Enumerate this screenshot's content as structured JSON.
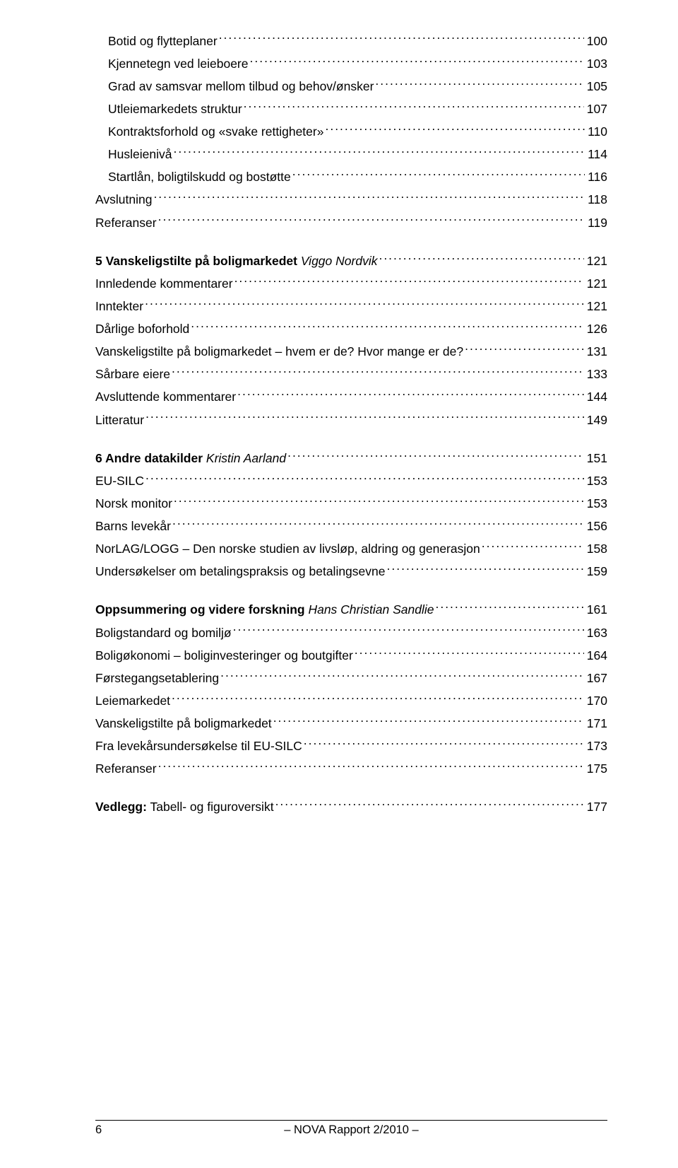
{
  "footer": {
    "page_number": "6",
    "center": "– NOVA Rapport 2/2010 –"
  },
  "toc": {
    "groups": [
      {
        "items": [
          {
            "label": "Botid og flytteplaner",
            "page": "100",
            "bold": false,
            "italic": false,
            "indent": true
          },
          {
            "label": "Kjennetegn ved leieboere",
            "page": "103",
            "bold": false,
            "italic": false,
            "indent": true
          },
          {
            "label": "Grad av samsvar mellom tilbud og behov/ønsker",
            "page": "105",
            "bold": false,
            "italic": false,
            "indent": true
          },
          {
            "label": "Utleiemarkedets struktur",
            "page": "107",
            "bold": false,
            "italic": false,
            "indent": true
          },
          {
            "label": "Kontraktsforhold og «svake rettigheter»",
            "page": "110",
            "bold": false,
            "italic": false,
            "indent": true
          },
          {
            "label": "Husleienivå",
            "page": "114",
            "bold": false,
            "italic": false,
            "indent": true
          },
          {
            "label": "Startlån, boligtilskudd og bostøtte",
            "page": "116",
            "bold": false,
            "italic": false,
            "indent": true
          },
          {
            "label": "Avslutning",
            "page": "118",
            "bold": false,
            "italic": false,
            "indent": false
          },
          {
            "label": "Referanser",
            "page": "119",
            "bold": false,
            "italic": false,
            "indent": false
          }
        ]
      },
      {
        "items": [
          {
            "label_parts": [
              {
                "text": "5  Vanskeligstilte på boligmarkedet",
                "bold": true,
                "italic": false
              },
              {
                "text": " ",
                "bold": false,
                "italic": false
              },
              {
                "text": "Viggo Nordvik",
                "bold": false,
                "italic": true
              }
            ],
            "page": "121",
            "bold_page": false,
            "indent": false
          },
          {
            "label": "Innledende kommentarer",
            "page": "121",
            "bold": false,
            "italic": false,
            "indent": false
          },
          {
            "label": "Inntekter",
            "page": "121",
            "bold": false,
            "italic": false,
            "indent": false
          },
          {
            "label": "Dårlige boforhold",
            "page": "126",
            "bold": false,
            "italic": false,
            "indent": false
          },
          {
            "label": "Vanskeligstilte på boligmarkedet – hvem er de? Hvor mange er de?",
            "page": "131",
            "bold": false,
            "italic": false,
            "indent": false
          },
          {
            "label": "Sårbare eiere",
            "page": "133",
            "bold": false,
            "italic": false,
            "indent": false
          },
          {
            "label": "Avsluttende kommentarer",
            "page": "144",
            "bold": false,
            "italic": false,
            "indent": false
          },
          {
            "label": "Litteratur",
            "page": "149",
            "bold": false,
            "italic": false,
            "indent": false
          }
        ]
      },
      {
        "items": [
          {
            "label_parts": [
              {
                "text": "6  Andre datakilder",
                "bold": true,
                "italic": false
              },
              {
                "text": " ",
                "bold": false,
                "italic": false
              },
              {
                "text": "Kristin Aarland",
                "bold": false,
                "italic": true
              }
            ],
            "page": "151",
            "bold_page": false,
            "indent": false
          },
          {
            "label": "EU-SILC",
            "page": "153",
            "bold": false,
            "italic": false,
            "indent": false
          },
          {
            "label": "Norsk monitor",
            "page": "153",
            "bold": false,
            "italic": false,
            "indent": false
          },
          {
            "label": "Barns levekår",
            "page": "156",
            "bold": false,
            "italic": false,
            "indent": false
          },
          {
            "label": "NorLAG/LOGG – Den norske studien av livsløp, aldring og generasjon",
            "page": "158",
            "bold": false,
            "italic": false,
            "indent": false
          },
          {
            "label": "Undersøkelser om betalingspraksis og betalingsevne",
            "page": "159",
            "bold": false,
            "italic": false,
            "indent": false
          }
        ]
      },
      {
        "items": [
          {
            "label_parts": [
              {
                "text": "Oppsummering og videre forskning",
                "bold": true,
                "italic": false
              },
              {
                "text": " ",
                "bold": false,
                "italic": false
              },
              {
                "text": "Hans Christian Sandlie",
                "bold": false,
                "italic": true
              }
            ],
            "page": "161",
            "bold_page": false,
            "indent": false
          },
          {
            "label": "Boligstandard og bomiljø",
            "page": "163",
            "bold": false,
            "italic": false,
            "indent": false
          },
          {
            "label": "Boligøkonomi – boliginvesteringer og boutgifter",
            "page": "164",
            "bold": false,
            "italic": false,
            "indent": false
          },
          {
            "label": "Førstegangsetablering",
            "page": "167",
            "bold": false,
            "italic": false,
            "indent": false
          },
          {
            "label": "Leiemarkedet",
            "page": "170",
            "bold": false,
            "italic": false,
            "indent": false
          },
          {
            "label": "Vanskeligstilte på boligmarkedet",
            "page": "171",
            "bold": false,
            "italic": false,
            "indent": false
          },
          {
            "label": "Fra levekårsundersøkelse til EU-SILC",
            "page": "173",
            "bold": false,
            "italic": false,
            "indent": false
          },
          {
            "label": "Referanser",
            "page": "175",
            "bold": false,
            "italic": false,
            "indent": false
          }
        ]
      },
      {
        "items": [
          {
            "label_parts": [
              {
                "text": "Vedlegg:",
                "bold": true,
                "italic": false
              },
              {
                "text": " Tabell- og figuroversikt",
                "bold": false,
                "italic": false
              }
            ],
            "page": "177",
            "bold_page": false,
            "indent": false
          }
        ]
      }
    ]
  }
}
